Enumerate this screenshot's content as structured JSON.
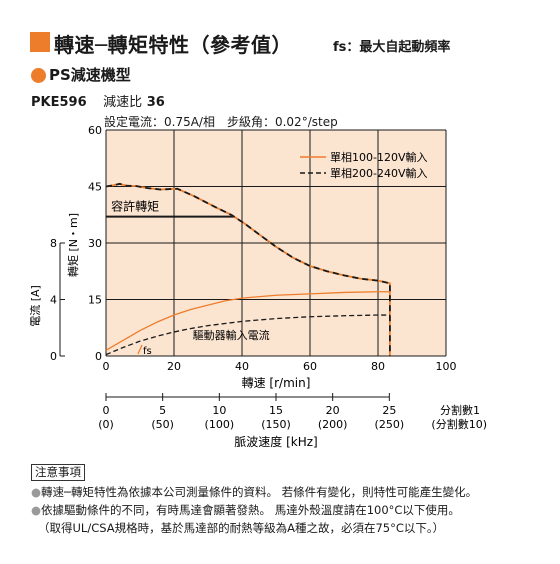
{
  "header": {
    "title": "轉速─轉矩特性（參考值）",
    "title_note": "fs：最大自起動頻率"
  },
  "section": {
    "title": "PS減速機型"
  },
  "model": {
    "name": "PKE596",
    "ratio_label": "減速比",
    "ratio_value": "36"
  },
  "settings": "設定電流：0.75A/相　步級角：0.02°/step",
  "chart_data": {
    "type": "line",
    "title": "",
    "xlabel": "轉速 [r/min]",
    "ylabel_torque": "轉矩 [N・m]",
    "ylabel_current": "電流 [A]",
    "xlim": [
      0,
      100
    ],
    "ylim": [
      0,
      60
    ],
    "current_lim": [
      0,
      16
    ],
    "x_ticks": [
      "0",
      "20",
      "40",
      "60",
      "80",
      "100"
    ],
    "y_ticks": [
      "0",
      "15",
      "30",
      "45",
      "60"
    ],
    "current_ticks": [
      "0",
      "4",
      "8"
    ],
    "grid": true,
    "legend_position": "top-right",
    "series": [
      {
        "name": "單相100-120V輸入",
        "kind": "torque",
        "color": "#ee7d2b",
        "style": "solid",
        "x": [
          0,
          2,
          4,
          6,
          9,
          12,
          16,
          21,
          26,
          32,
          37,
          41,
          45,
          50,
          55,
          60,
          65,
          70,
          75,
          80,
          83.5,
          83.5
        ],
        "y": [
          45,
          45.3,
          45.7,
          45.2,
          45.1,
          44.6,
          44.2,
          44.4,
          42.4,
          39.6,
          37.4,
          35,
          32.3,
          29,
          26.1,
          23.9,
          22.5,
          21.4,
          20.5,
          20,
          19.3,
          0
        ]
      },
      {
        "name": "單相200-240V輸入",
        "kind": "torque",
        "color": "#1a1a1a",
        "style": "dashed",
        "x": [
          0,
          2,
          4,
          6,
          9,
          12,
          16,
          21,
          26,
          32,
          37,
          41,
          45,
          50,
          55,
          60,
          65,
          70,
          75,
          80,
          83.5,
          83.5
        ],
        "y": [
          45,
          45.3,
          45.7,
          45.2,
          45.1,
          44.6,
          44.2,
          44.4,
          42.4,
          39.6,
          37.4,
          35,
          32.3,
          29,
          26.1,
          23.9,
          22.5,
          21.4,
          20.5,
          20,
          19.3,
          0
        ]
      },
      {
        "name": "單相100-120V輸入",
        "kind": "current",
        "color": "#ee7d2b",
        "style": "solid",
        "x": [
          0,
          5,
          10,
          15,
          20,
          25,
          30,
          35,
          40,
          50,
          60,
          70,
          80,
          83.5
        ],
        "y": [
          0.4,
          1.1,
          1.8,
          2.4,
          2.9,
          3.3,
          3.6,
          3.9,
          4.1,
          4.3,
          4.4,
          4.5,
          4.55,
          4.55
        ]
      },
      {
        "name": "單相200-240V輸入",
        "kind": "current",
        "color": "#1a1a1a",
        "style": "dashed",
        "x": [
          0,
          5,
          10,
          15,
          20,
          25,
          30,
          35,
          40,
          50,
          60,
          70,
          80,
          83.5
        ],
        "y": [
          0.1,
          0.6,
          1.05,
          1.4,
          1.7,
          1.95,
          2.15,
          2.3,
          2.45,
          2.65,
          2.78,
          2.85,
          2.9,
          2.9
        ]
      }
    ],
    "allowable_torque": {
      "label": "容許轉矩",
      "value": 37
    },
    "current_label": "驅動器輸入電流",
    "fs_label": "fs",
    "pulse_axis": {
      "label": "脈波速度 [kHz]",
      "ticks": [
        "0",
        "5",
        "10",
        "15",
        "20",
        "25"
      ],
      "ticks_alt": [
        "(0)",
        "(50)",
        "(100)",
        "(150)",
        "(200)",
        "(250)"
      ],
      "division_label": "分割數1",
      "division_label_alt": "(分割數10)"
    }
  },
  "notes": {
    "heading": "注意事項",
    "items": [
      "轉速─轉矩特性為依據本公司測量條件的資料。 若條件有變化，則特性可能產生變化。",
      "依據驅動條件的不同，有時馬達會顯著發熱。 馬達外殼溫度請在100°C以下使用。"
    ],
    "extra": "（取得UL/CSA規格時，基於馬達部的耐熱等級為A種之故，必須在75°C以下。）",
    "bullet_color": "#9a9a9a"
  }
}
